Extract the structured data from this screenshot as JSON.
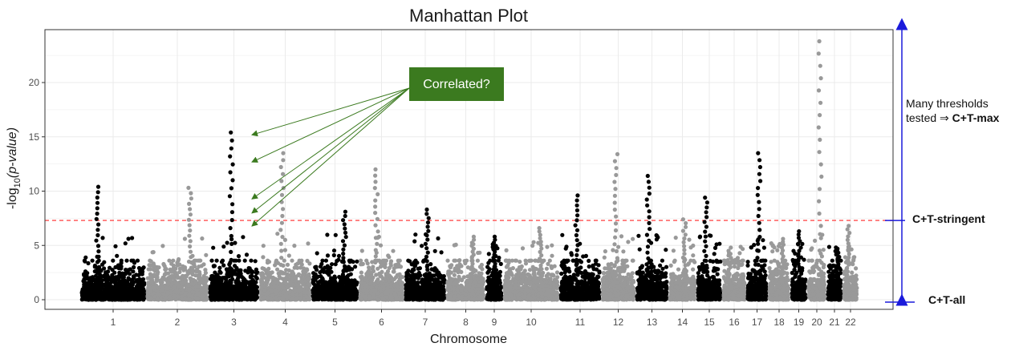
{
  "chart_data": {
    "type": "scatter",
    "title": "Manhattan Plot",
    "xlabel": "Chromosome",
    "ylabel_prefix": "-log",
    "ylabel_sub": "10",
    "ylabel_main": "(p-value)",
    "ylim": [
      0,
      24
    ],
    "yticks": [
      0,
      5,
      10,
      15,
      20
    ],
    "grid": true,
    "chromosomes": [
      "1",
      "2",
      "3",
      "4",
      "5",
      "6",
      "7",
      "8",
      "9",
      "10",
      "11",
      "12",
      "13",
      "14",
      "15",
      "16",
      "17",
      "18",
      "19",
      "20",
      "21",
      "22"
    ],
    "chromosome_colors": [
      "#000000",
      "#999999"
    ],
    "threshold": {
      "value": 7.3,
      "color": "#ff4d4d",
      "style": "dashed"
    },
    "peaks": [
      {
        "chromosome": "1",
        "max": 10.4
      },
      {
        "chromosome": "2",
        "max": 10.3
      },
      {
        "chromosome": "3",
        "max": 15.4
      },
      {
        "chromosome": "4",
        "max": 13.5
      },
      {
        "chromosome": "5",
        "max": 8.1
      },
      {
        "chromosome": "6",
        "max": 12.0
      },
      {
        "chromosome": "7",
        "max": 8.3
      },
      {
        "chromosome": "8",
        "max": 5.8
      },
      {
        "chromosome": "9",
        "max": 5.8
      },
      {
        "chromosome": "10",
        "max": 6.6
      },
      {
        "chromosome": "11",
        "max": 9.6
      },
      {
        "chromosome": "12",
        "max": 13.4
      },
      {
        "chromosome": "13",
        "max": 11.4
      },
      {
        "chromosome": "14",
        "max": 7.4
      },
      {
        "chromosome": "15",
        "max": 9.4
      },
      {
        "chromosome": "16",
        "max": 4.5
      },
      {
        "chromosome": "17",
        "max": 13.5
      },
      {
        "chromosome": "18",
        "max": 5.6
      },
      {
        "chromosome": "19",
        "max": 6.3
      },
      {
        "chromosome": "20",
        "max": 23.8
      },
      {
        "chromosome": "21",
        "max": 4.6
      },
      {
        "chromosome": "22",
        "max": 6.8
      }
    ],
    "annotations": {
      "callout": {
        "text": "Correlated?",
        "color": "#3b7a1f"
      },
      "callout_targets_chr3": [
        15.4,
        12.9,
        9.5,
        8.2,
        7.0
      ],
      "range_arrow_color": "#1a1adb",
      "many_thresholds_line1": "Many thresholds",
      "many_thresholds_line2_prefix": "tested ⇒ ",
      "many_thresholds_line2_bold": "C+T-max",
      "stringent_label": "C+T-stringent",
      "all_label": "C+T-all"
    }
  }
}
